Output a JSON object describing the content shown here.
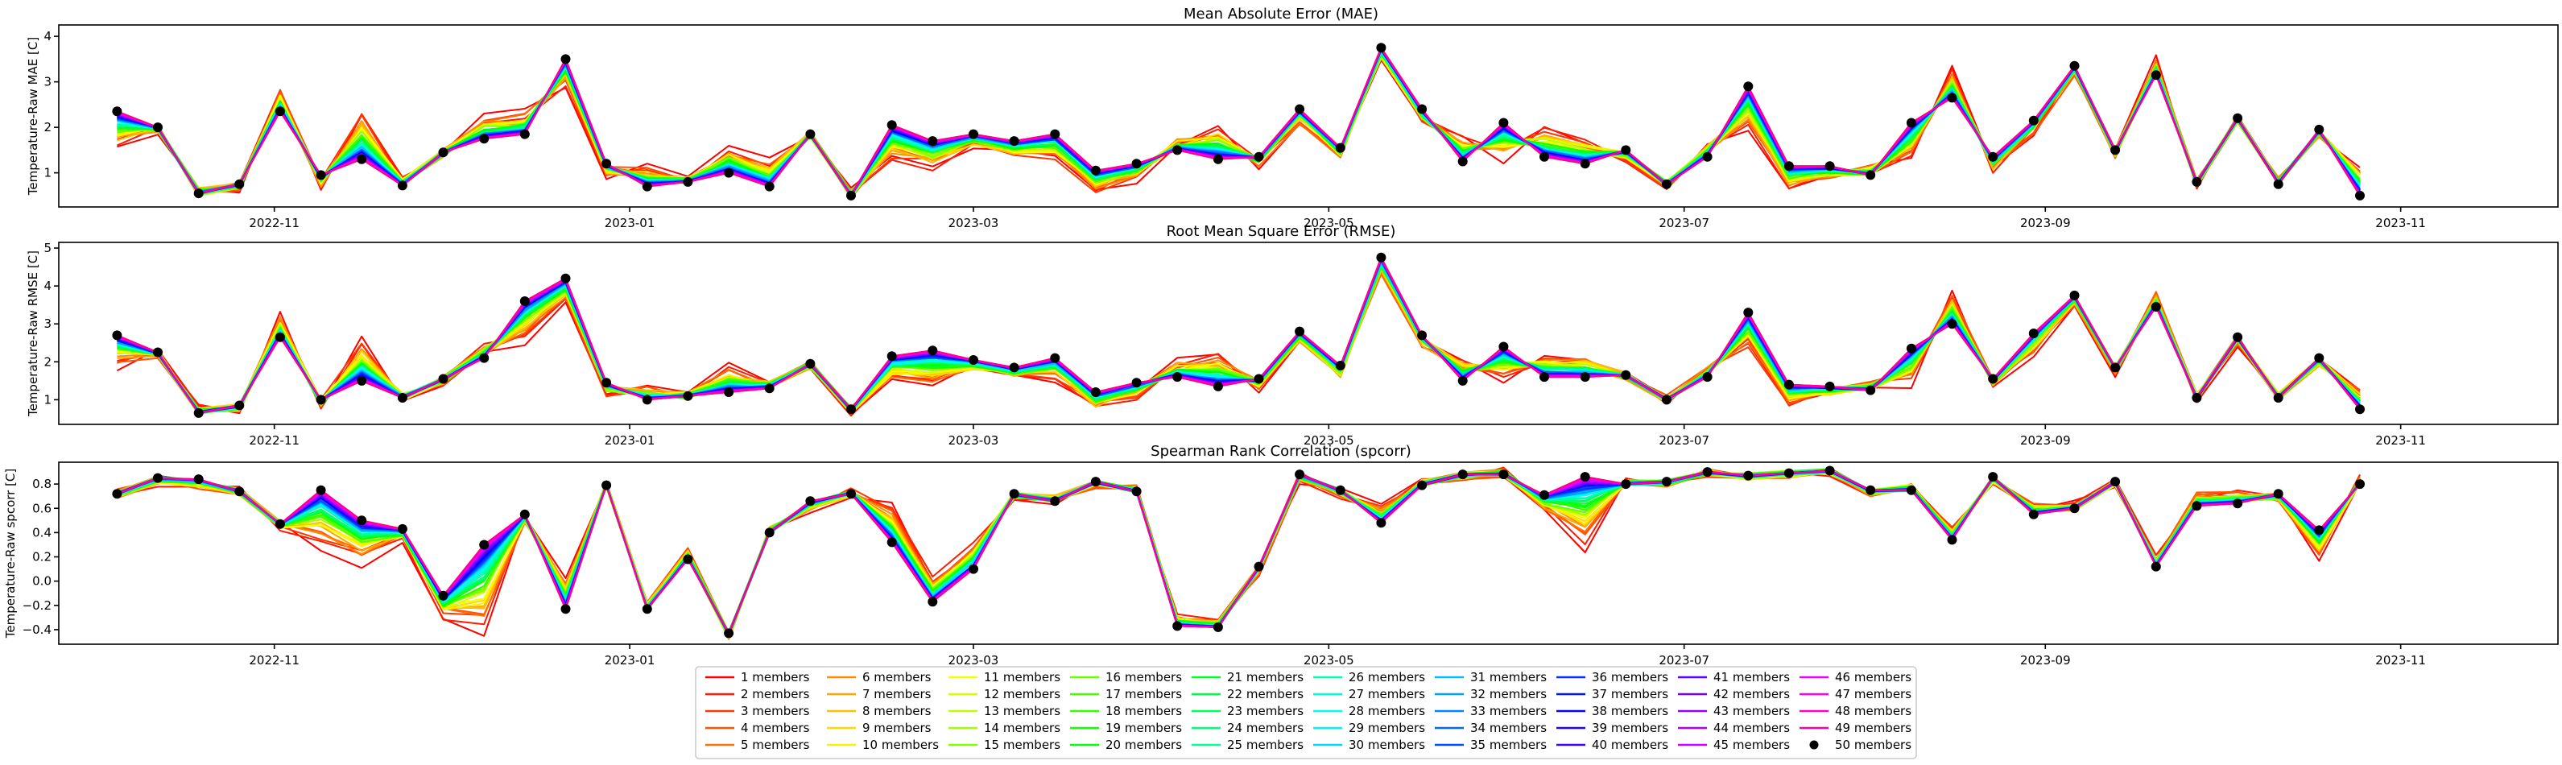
{
  "chart_data": [
    {
      "type": "line",
      "title": "Mean Absolute Error (MAE)",
      "ylabel": "Temperature-Raw MAE [C]",
      "xlabel": "",
      "x_ticks": [
        "2022-11",
        "2023-01",
        "2023-03",
        "2023-05",
        "2023-07",
        "2023-09",
        "2023-11"
      ],
      "x_tick_dates": [
        "2022-11-01",
        "2023-01-01",
        "2023-03-01",
        "2023-05-01",
        "2023-07-01",
        "2023-09-01",
        "2023-11-01"
      ],
      "xlim": [
        "2022-09-25",
        "2023-11-28"
      ],
      "y_ticks": [
        1,
        2,
        3,
        4
      ],
      "ylim": [
        0.25,
        4.25
      ],
      "grid": false,
      "series_hint": "ensemble of 1..50 members; 50-member values shown with black dot markers",
      "dates": [
        "2022-10-05",
        "2022-10-12",
        "2022-10-19",
        "2022-10-26",
        "2022-11-02",
        "2022-11-09",
        "2022-11-16",
        "2022-11-23",
        "2022-11-30",
        "2022-12-07",
        "2022-12-14",
        "2022-12-21",
        "2022-12-28",
        "2023-01-04",
        "2023-01-11",
        "2023-01-18",
        "2023-01-25",
        "2023-02-01",
        "2023-02-08",
        "2023-02-15",
        "2023-02-22",
        "2023-03-01",
        "2023-03-08",
        "2023-03-15",
        "2023-03-22",
        "2023-03-29",
        "2023-04-05",
        "2023-04-12",
        "2023-04-19",
        "2023-04-26",
        "2023-05-03",
        "2023-05-10",
        "2023-05-17",
        "2023-05-24",
        "2023-05-31",
        "2023-06-07",
        "2023-06-14",
        "2023-06-21",
        "2023-06-28",
        "2023-07-05",
        "2023-07-12",
        "2023-07-19",
        "2023-07-26",
        "2023-08-02",
        "2023-08-09",
        "2023-08-16",
        "2023-08-23",
        "2023-08-30",
        "2023-09-06",
        "2023-09-13",
        "2023-09-20",
        "2023-09-27",
        "2023-10-04",
        "2023-10-11",
        "2023-10-18",
        "2023-10-25"
      ],
      "values_50": [
        2.35,
        2.0,
        0.55,
        0.75,
        2.35,
        0.95,
        1.3,
        0.72,
        1.45,
        1.75,
        1.85,
        3.5,
        1.2,
        0.7,
        0.8,
        1.0,
        0.7,
        1.85,
        0.5,
        2.05,
        1.7,
        1.85,
        1.7,
        1.85,
        1.05,
        1.2,
        1.5,
        1.3,
        1.35,
        2.4,
        1.55,
        3.75,
        2.4,
        1.25,
        2.1,
        1.35,
        1.2,
        1.5,
        0.75,
        1.35,
        2.9,
        1.15,
        1.15,
        0.95,
        2.1,
        2.65,
        1.35,
        2.15,
        3.35,
        1.5,
        3.15,
        0.8,
        2.2,
        0.75,
        1.95,
        0.5
      ],
      "values_1": [
        1.5,
        1.95,
        0.6,
        0.7,
        2.8,
        0.7,
        2.4,
        0.85,
        1.4,
        2.2,
        2.3,
        2.95,
        1.0,
        1.1,
        0.85,
        1.6,
        1.2,
        1.8,
        0.55,
        1.3,
        1.1,
        1.6,
        1.4,
        1.3,
        0.6,
        0.9,
        1.7,
        2.05,
        1.2,
        2.1,
        1.35,
        3.5,
        2.1,
        1.75,
        1.3,
        1.95,
        1.75,
        1.3,
        0.75,
        1.6,
        2.0,
        0.65,
        0.9,
        1.1,
        1.25,
        3.25,
        1.05,
        1.9,
        3.2,
        1.4,
        3.45,
        0.75,
        2.15,
        0.85,
        1.8,
        1.2
      ]
    },
    {
      "type": "line",
      "title": "Root Mean Square Error (RMSE)",
      "ylabel": "Temperature-Raw RMSE [C]",
      "xlabel": "",
      "x_ticks": [
        "2022-11",
        "2023-01",
        "2023-03",
        "2023-05",
        "2023-07",
        "2023-09",
        "2023-11"
      ],
      "x_tick_dates": [
        "2022-11-01",
        "2023-01-01",
        "2023-03-01",
        "2023-05-01",
        "2023-07-01",
        "2023-09-01",
        "2023-11-01"
      ],
      "xlim": [
        "2022-09-25",
        "2023-11-28"
      ],
      "y_ticks": [
        1,
        2,
        3,
        4,
        5
      ],
      "ylim": [
        0.35,
        5.15
      ],
      "grid": false,
      "dates_ref": "same as MAE",
      "values_50": [
        2.7,
        2.25,
        0.65,
        0.85,
        2.65,
        1.0,
        1.5,
        1.05,
        1.55,
        2.1,
        3.6,
        4.2,
        1.45,
        1.0,
        1.1,
        1.2,
        1.3,
        1.95,
        0.75,
        2.15,
        2.3,
        2.05,
        1.85,
        2.1,
        1.2,
        1.45,
        1.6,
        1.35,
        1.55,
        2.8,
        1.9,
        4.75,
        2.7,
        1.5,
        2.4,
        1.6,
        1.6,
        1.65,
        1.0,
        1.6,
        3.3,
        1.4,
        1.35,
        1.25,
        2.35,
        3.0,
        1.55,
        2.75,
        3.75,
        1.85,
        3.45,
        1.05,
        2.65,
        1.05,
        2.1,
        0.75
      ],
      "values_1": [
        1.9,
        2.2,
        0.75,
        0.75,
        3.2,
        0.85,
        2.6,
        1.1,
        1.5,
        2.4,
        2.6,
        3.6,
        1.15,
        1.3,
        1.1,
        1.85,
        1.5,
        1.9,
        0.7,
        1.5,
        1.35,
        1.8,
        1.6,
        1.55,
        0.75,
        1.1,
        2.0,
        2.25,
        1.35,
        2.55,
        1.6,
        4.3,
        2.45,
        2.05,
        1.55,
        2.2,
        2.1,
        1.6,
        1.05,
        1.85,
        2.35,
        0.9,
        1.15,
        1.4,
        1.45,
        3.8,
        1.4,
        2.25,
        3.55,
        1.75,
        3.8,
        1.05,
        2.55,
        1.1,
        1.95,
        1.25
      ]
    },
    {
      "type": "line",
      "title": "Spearman Rank Correlation (spcorr)",
      "ylabel": "Temperature-Raw spcorr [C]",
      "xlabel": "",
      "x_ticks": [
        "2022-11",
        "2023-01",
        "2023-03",
        "2023-05",
        "2023-07",
        "2023-09",
        "2023-11"
      ],
      "x_tick_dates": [
        "2022-11-01",
        "2023-01-01",
        "2023-03-01",
        "2023-05-01",
        "2023-07-01",
        "2023-09-01",
        "2023-11-01"
      ],
      "xlim": [
        "2022-09-25",
        "2023-11-28"
      ],
      "y_ticks": [
        -0.4,
        -0.2,
        0.0,
        0.2,
        0.4,
        0.6,
        0.8
      ],
      "y_tick_labels": [
        "−0.4",
        "−0.2",
        "0.0",
        "0.2",
        "0.4",
        "0.6",
        "0.8"
      ],
      "ylim": [
        -0.52,
        0.98
      ],
      "grid": false,
      "dates_ref": "same as MAE",
      "values_50": [
        0.72,
        0.85,
        0.84,
        0.74,
        0.47,
        0.75,
        0.5,
        0.43,
        -0.12,
        0.3,
        0.55,
        -0.23,
        0.79,
        -0.23,
        0.18,
        -0.43,
        0.4,
        0.66,
        0.72,
        0.32,
        -0.17,
        0.1,
        0.72,
        0.66,
        0.82,
        0.74,
        -0.37,
        -0.38,
        0.12,
        0.88,
        0.75,
        0.48,
        0.79,
        0.88,
        0.88,
        0.71,
        0.86,
        0.8,
        0.82,
        0.9,
        0.87,
        0.89,
        0.91,
        0.75,
        0.75,
        0.34,
        0.86,
        0.55,
        0.6,
        0.82,
        0.12,
        0.62,
        0.64,
        0.72,
        0.42,
        0.8
      ],
      "values_1": [
        0.72,
        0.82,
        0.78,
        0.74,
        0.46,
        0.3,
        0.15,
        0.35,
        -0.3,
        -0.45,
        0.5,
        0.02,
        0.8,
        -0.2,
        0.25,
        -0.45,
        0.42,
        0.6,
        0.73,
        0.6,
        0.02,
        0.3,
        0.7,
        0.68,
        0.8,
        0.76,
        -0.3,
        -0.35,
        0.08,
        0.85,
        0.72,
        0.6,
        0.82,
        0.86,
        0.9,
        0.6,
        0.28,
        0.82,
        0.8,
        0.88,
        0.86,
        0.88,
        0.9,
        0.72,
        0.78,
        0.42,
        0.82,
        0.62,
        0.62,
        0.8,
        0.18,
        0.72,
        0.72,
        0.68,
        0.2,
        0.84
      ]
    }
  ],
  "legend": {
    "columns": 10,
    "entries": [
      {
        "label": "1 members",
        "color": "#ff0000",
        "marker": "line"
      },
      {
        "label": "2 members",
        "color": "#ff1c00",
        "marker": "line"
      },
      {
        "label": "3 members",
        "color": "#ff3800",
        "marker": "line"
      },
      {
        "label": "4 members",
        "color": "#ff5400",
        "marker": "line"
      },
      {
        "label": "5 members",
        "color": "#ff7000",
        "marker": "line"
      },
      {
        "label": "6 members",
        "color": "#ff8c00",
        "marker": "line"
      },
      {
        "label": "7 members",
        "color": "#ffa600",
        "marker": "line"
      },
      {
        "label": "8 members",
        "color": "#ffc000",
        "marker": "line"
      },
      {
        "label": "9 members",
        "color": "#ffd800",
        "marker": "line"
      },
      {
        "label": "10 members",
        "color": "#fff000",
        "marker": "line"
      },
      {
        "label": "11 members",
        "color": "#f4ff00",
        "marker": "line"
      },
      {
        "label": "12 members",
        "color": "#d8ff00",
        "marker": "line"
      },
      {
        "label": "13 members",
        "color": "#bcff00",
        "marker": "line"
      },
      {
        "label": "14 members",
        "color": "#a0ff00",
        "marker": "line"
      },
      {
        "label": "15 members",
        "color": "#84ff00",
        "marker": "line"
      },
      {
        "label": "16 members",
        "color": "#68ff00",
        "marker": "line"
      },
      {
        "label": "17 members",
        "color": "#4cff00",
        "marker": "line"
      },
      {
        "label": "18 members",
        "color": "#30ff00",
        "marker": "line"
      },
      {
        "label": "19 members",
        "color": "#14ff00",
        "marker": "line"
      },
      {
        "label": "20 members",
        "color": "#00ff08",
        "marker": "line"
      },
      {
        "label": "21 members",
        "color": "#00ff24",
        "marker": "line"
      },
      {
        "label": "22 members",
        "color": "#00ff40",
        "marker": "line"
      },
      {
        "label": "23 members",
        "color": "#00ff5c",
        "marker": "line"
      },
      {
        "label": "24 members",
        "color": "#00ff78",
        "marker": "line"
      },
      {
        "label": "25 members",
        "color": "#00ff94",
        "marker": "line"
      },
      {
        "label": "26 members",
        "color": "#00ffb0",
        "marker": "line"
      },
      {
        "label": "27 members",
        "color": "#00ffcc",
        "marker": "line"
      },
      {
        "label": "28 members",
        "color": "#00ffe8",
        "marker": "line"
      },
      {
        "label": "29 members",
        "color": "#00f4ff",
        "marker": "line"
      },
      {
        "label": "30 members",
        "color": "#00d8ff",
        "marker": "line"
      },
      {
        "label": "31 members",
        "color": "#00bcff",
        "marker": "line"
      },
      {
        "label": "32 members",
        "color": "#00a0ff",
        "marker": "line"
      },
      {
        "label": "33 members",
        "color": "#0084ff",
        "marker": "line"
      },
      {
        "label": "34 members",
        "color": "#0068ff",
        "marker": "line"
      },
      {
        "label": "35 members",
        "color": "#004cff",
        "marker": "line"
      },
      {
        "label": "36 members",
        "color": "#0030ff",
        "marker": "line"
      },
      {
        "label": "37 members",
        "color": "#0014ff",
        "marker": "line"
      },
      {
        "label": "38 members",
        "color": "#0800ff",
        "marker": "line"
      },
      {
        "label": "39 members",
        "color": "#2400ff",
        "marker": "line"
      },
      {
        "label": "40 members",
        "color": "#4000ff",
        "marker": "line"
      },
      {
        "label": "41 members",
        "color": "#5c00ff",
        "marker": "line"
      },
      {
        "label": "42 members",
        "color": "#7800ff",
        "marker": "line"
      },
      {
        "label": "43 members",
        "color": "#9400ff",
        "marker": "line"
      },
      {
        "label": "44 members",
        "color": "#b000ff",
        "marker": "line"
      },
      {
        "label": "45 members",
        "color": "#cc00ff",
        "marker": "line"
      },
      {
        "label": "46 members",
        "color": "#e800ff",
        "marker": "line"
      },
      {
        "label": "47 members",
        "color": "#ff00e8",
        "marker": "line"
      },
      {
        "label": "48 members",
        "color": "#ff00c8",
        "marker": "line"
      },
      {
        "label": "49 members",
        "color": "#ff00a8",
        "marker": "line"
      },
      {
        "label": "50 members",
        "color": "#000000",
        "marker": "dot"
      }
    ]
  }
}
